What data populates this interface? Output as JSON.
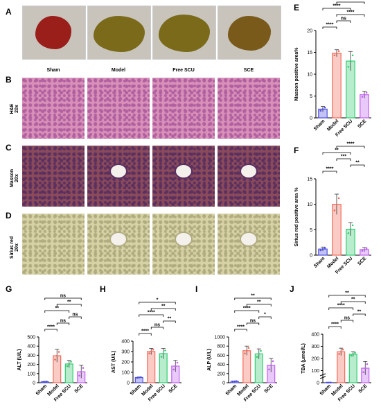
{
  "panels": {
    "A": "A",
    "B": "B",
    "C": "C",
    "D": "D",
    "E": "E",
    "F": "F",
    "G": "G",
    "H": "H",
    "I": "I",
    "J": "J"
  },
  "groups": [
    "Sham",
    "Model",
    "Free SCU",
    "SCE"
  ],
  "stain_rows": [
    {
      "name": "H&E",
      "mag": "20x",
      "bg": "#d890b8",
      "fg": "#b060a0"
    },
    {
      "name": "Masson",
      "mag": "20x",
      "bg": "#8a4a5a",
      "fg": "#5a3060"
    },
    {
      "name": "Sirius red",
      "mag": "20x",
      "bg": "#d6d2a6",
      "fg": "#b0ac80"
    }
  ],
  "colors": {
    "Sham": "#5050e0",
    "Model": "#f06a5a",
    "Free SCU": "#30cc70",
    "SCE": "#c060f0"
  },
  "chart_data": [
    {
      "panel": "E",
      "type": "bar",
      "categories": [
        "Sham",
        "Model",
        "Free SCU",
        "SCE"
      ],
      "values": [
        2,
        14.8,
        13,
        5.3
      ],
      "errors": [
        0.6,
        0.8,
        2.2,
        0.8
      ],
      "ylabel": "Masson positive area%",
      "ylim": [
        0,
        20
      ],
      "yticks": [
        0,
        5,
        10,
        15,
        20
      ],
      "sig": [
        {
          "a": 0,
          "b": 1,
          "t": "****"
        },
        {
          "a": 1,
          "b": 2,
          "t": "ns"
        },
        {
          "a": 1,
          "b": 3,
          "t": "****"
        },
        {
          "a": 0,
          "b": 2,
          "t": "****"
        },
        {
          "a": 1,
          "b": 3,
          "t": "****",
          "lvl": 3
        },
        {
          "a": 0,
          "b": 3,
          "t": "**"
        }
      ]
    },
    {
      "panel": "F",
      "type": "bar",
      "categories": [
        "Sham",
        "Model",
        "Free SCU",
        "SCE"
      ],
      "values": [
        1.2,
        10,
        5.1,
        1.1
      ],
      "errors": [
        0.4,
        2,
        1.3,
        0.4
      ],
      "ylabel": "Sirius red positive area %",
      "ylim": [
        0,
        15
      ],
      "yticks": [
        0,
        5,
        10,
        15
      ],
      "sig": [
        {
          "a": 0,
          "b": 1,
          "t": "****"
        },
        {
          "a": 2,
          "b": 3,
          "t": "**"
        },
        {
          "a": 1,
          "b": 2,
          "t": "***"
        },
        {
          "a": 0,
          "b": 2,
          "t": "**"
        },
        {
          "a": 1,
          "b": 3,
          "t": "****"
        }
      ]
    },
    {
      "panel": "G",
      "type": "bar",
      "categories": [
        "Sham",
        "Model",
        "Free SCU",
        "SCE"
      ],
      "values": [
        10,
        295,
        205,
        120
      ],
      "errors": [
        5,
        70,
        40,
        70
      ],
      "ylabel": "ALT (U/L)",
      "ylim": [
        0,
        500
      ],
      "yticks": [
        0,
        100,
        200,
        300,
        400,
        500
      ],
      "sig": [
        {
          "a": 0,
          "b": 1,
          "t": "****"
        },
        {
          "a": 1,
          "b": 2,
          "t": "ns"
        },
        {
          "a": 2,
          "b": 3,
          "t": "ns"
        },
        {
          "a": 0,
          "b": 2,
          "t": "**"
        },
        {
          "a": 1,
          "b": 3,
          "t": "**"
        },
        {
          "a": 0,
          "b": 3,
          "t": "ns"
        }
      ]
    },
    {
      "panel": "H",
      "type": "bar",
      "categories": [
        "Sham",
        "Model",
        "Free SCU",
        "SCE"
      ],
      "values": [
        50,
        300,
        280,
        160
      ],
      "errors": [
        5,
        30,
        50,
        55
      ],
      "ylabel": "AST (U/L)",
      "ylim": [
        0,
        400
      ],
      "yticks": [
        0,
        100,
        200,
        300,
        400
      ],
      "sig": [
        {
          "a": 0,
          "b": 1,
          "t": "****"
        },
        {
          "a": 1,
          "b": 2,
          "t": "ns"
        },
        {
          "a": 2,
          "b": 3,
          "t": "**"
        },
        {
          "a": 0,
          "b": 2,
          "t": "****"
        },
        {
          "a": 1,
          "b": 3,
          "t": "**"
        },
        {
          "a": 0,
          "b": 3,
          "t": "*"
        }
      ]
    },
    {
      "panel": "I",
      "type": "bar",
      "categories": [
        "Sham",
        "Model",
        "Free SCU",
        "SCE"
      ],
      "values": [
        30,
        700,
        630,
        380
      ],
      "errors": [
        5,
        100,
        110,
        150
      ],
      "ylabel": "ALP (U/L)",
      "ylim": [
        0,
        1000
      ],
      "yticks": [
        0,
        200,
        400,
        600,
        800,
        1000
      ],
      "sig": [
        {
          "a": 0,
          "b": 1,
          "t": "****"
        },
        {
          "a": 1,
          "b": 2,
          "t": "ns"
        },
        {
          "a": 2,
          "b": 3,
          "t": "*"
        },
        {
          "a": 0,
          "b": 2,
          "t": "****"
        },
        {
          "a": 1,
          "b": 3,
          "t": "**"
        },
        {
          "a": 0,
          "b": 3,
          "t": "**"
        }
      ]
    },
    {
      "panel": "J",
      "type": "bar",
      "categories": [
        "Sham",
        "Model",
        "Free SCU",
        "SCE"
      ],
      "values": [
        1.5,
        255,
        235,
        120
      ],
      "errors": [
        0.5,
        30,
        20,
        55
      ],
      "ylabel": "TBA (μmol/L)",
      "ylim": [
        0,
        400
      ],
      "yticks": [
        0,
        100,
        200,
        300,
        400
      ],
      "ybreak": true,
      "sig": [
        {
          "a": 0,
          "b": 1,
          "t": "****"
        },
        {
          "a": 1,
          "b": 2,
          "t": "ns"
        },
        {
          "a": 2,
          "b": 3,
          "t": "**"
        },
        {
          "a": 0,
          "b": 2,
          "t": "****"
        },
        {
          "a": 1,
          "b": 3,
          "t": "**"
        },
        {
          "a": 0,
          "b": 3,
          "t": "**"
        }
      ]
    }
  ]
}
